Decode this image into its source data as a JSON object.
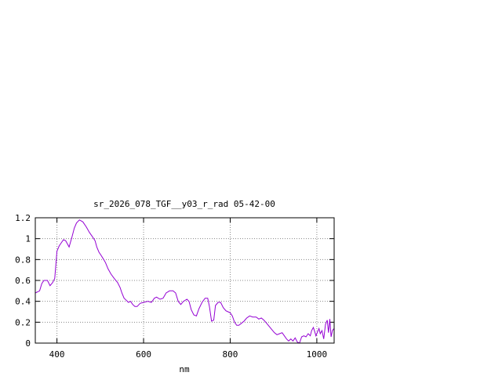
{
  "chart_data": {
    "type": "line",
    "title": "sr_2026_078_TGF__y03_r_rad 05-42-00",
    "xlabel": "nm",
    "ylabel": "",
    "xlim": [
      350,
      1040
    ],
    "ylim": [
      0,
      1.2
    ],
    "x_ticks": [
      400,
      600,
      800,
      1000
    ],
    "x_tick_labels": [
      "400",
      "600",
      "800",
      "1000"
    ],
    "y_ticks": [
      0,
      0.2,
      0.4,
      0.6,
      0.8,
      1,
      1.2
    ],
    "y_tick_labels": [
      "0",
      "0.2",
      "0.4",
      "0.6",
      "0.8",
      "1",
      "1.2"
    ],
    "grid": true,
    "line_color": "#9400d3",
    "series": [
      {
        "points": [
          [
            350,
            0.48
          ],
          [
            360,
            0.5
          ],
          [
            365,
            0.57
          ],
          [
            370,
            0.6
          ],
          [
            378,
            0.6
          ],
          [
            384,
            0.55
          ],
          [
            390,
            0.58
          ],
          [
            395,
            0.62
          ],
          [
            400,
            0.88
          ],
          [
            405,
            0.93
          ],
          [
            410,
            0.96
          ],
          [
            415,
            0.99
          ],
          [
            420,
            0.98
          ],
          [
            428,
            0.92
          ],
          [
            435,
            1.02
          ],
          [
            440,
            1.1
          ],
          [
            445,
            1.15
          ],
          [
            452,
            1.18
          ],
          [
            460,
            1.16
          ],
          [
            468,
            1.11
          ],
          [
            475,
            1.06
          ],
          [
            480,
            1.03
          ],
          [
            485,
            1.0
          ],
          [
            488,
            0.98
          ],
          [
            492,
            0.92
          ],
          [
            497,
            0.87
          ],
          [
            502,
            0.84
          ],
          [
            508,
            0.8
          ],
          [
            512,
            0.77
          ],
          [
            518,
            0.71
          ],
          [
            525,
            0.66
          ],
          [
            532,
            0.62
          ],
          [
            540,
            0.58
          ],
          [
            546,
            0.53
          ],
          [
            550,
            0.48
          ],
          [
            555,
            0.43
          ],
          [
            560,
            0.41
          ],
          [
            565,
            0.39
          ],
          [
            570,
            0.4
          ],
          [
            575,
            0.37
          ],
          [
            580,
            0.35
          ],
          [
            585,
            0.35
          ],
          [
            592,
            0.38
          ],
          [
            600,
            0.39
          ],
          [
            610,
            0.4
          ],
          [
            618,
            0.39
          ],
          [
            625,
            0.43
          ],
          [
            630,
            0.44
          ],
          [
            638,
            0.42
          ],
          [
            645,
            0.43
          ],
          [
            652,
            0.48
          ],
          [
            660,
            0.5
          ],
          [
            668,
            0.5
          ],
          [
            674,
            0.48
          ],
          [
            680,
            0.4
          ],
          [
            686,
            0.37
          ],
          [
            692,
            0.4
          ],
          [
            700,
            0.42
          ],
          [
            705,
            0.4
          ],
          [
            710,
            0.32
          ],
          [
            716,
            0.27
          ],
          [
            722,
            0.26
          ],
          [
            728,
            0.33
          ],
          [
            735,
            0.39
          ],
          [
            742,
            0.43
          ],
          [
            748,
            0.43
          ],
          [
            752,
            0.35
          ],
          [
            757,
            0.21
          ],
          [
            762,
            0.22
          ],
          [
            766,
            0.36
          ],
          [
            772,
            0.39
          ],
          [
            778,
            0.39
          ],
          [
            784,
            0.34
          ],
          [
            790,
            0.31
          ],
          [
            795,
            0.3
          ],
          [
            800,
            0.29
          ],
          [
            805,
            0.26
          ],
          [
            810,
            0.2
          ],
          [
            815,
            0.17
          ],
          [
            820,
            0.17
          ],
          [
            826,
            0.19
          ],
          [
            832,
            0.21
          ],
          [
            838,
            0.24
          ],
          [
            845,
            0.26
          ],
          [
            852,
            0.25
          ],
          [
            860,
            0.25
          ],
          [
            866,
            0.23
          ],
          [
            872,
            0.24
          ],
          [
            878,
            0.22
          ],
          [
            884,
            0.19
          ],
          [
            890,
            0.16
          ],
          [
            896,
            0.13
          ],
          [
            902,
            0.1
          ],
          [
            908,
            0.08
          ],
          [
            914,
            0.09
          ],
          [
            920,
            0.1
          ],
          [
            925,
            0.07
          ],
          [
            930,
            0.04
          ],
          [
            935,
            0.02
          ],
          [
            940,
            0.04
          ],
          [
            945,
            0.02
          ],
          [
            950,
            0.05
          ],
          [
            955,
            0.01
          ],
          [
            960,
            0.0
          ],
          [
            965,
            0.06
          ],
          [
            970,
            0.07
          ],
          [
            975,
            0.06
          ],
          [
            980,
            0.09
          ],
          [
            985,
            0.07
          ],
          [
            988,
            0.12
          ],
          [
            992,
            0.15
          ],
          [
            995,
            0.11
          ],
          [
            998,
            0.07
          ],
          [
            1002,
            0.11
          ],
          [
            1005,
            0.14
          ],
          [
            1008,
            0.09
          ],
          [
            1012,
            0.12
          ],
          [
            1016,
            0.04
          ],
          [
            1020,
            0.18
          ],
          [
            1024,
            0.22
          ],
          [
            1027,
            0.1
          ],
          [
            1030,
            0.23
          ],
          [
            1033,
            0.06
          ],
          [
            1036,
            0.12
          ],
          [
            1040,
            0.14
          ]
        ]
      }
    ]
  }
}
